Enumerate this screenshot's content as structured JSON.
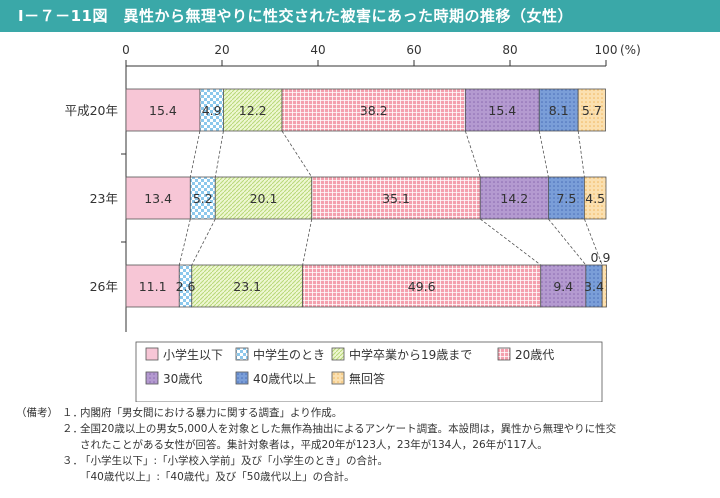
{
  "title": "Ⅰ－７－11図　異性から無理やりに性交された被害にあった時期の推移（女性）",
  "chart_data": {
    "type": "bar",
    "orientation": "horizontal",
    "stacked": true,
    "xlim": [
      0,
      100
    ],
    "x_ticks": [
      "0",
      "20",
      "40",
      "60",
      "80",
      "100"
    ],
    "x_unit": "(%)",
    "categories": [
      "平成20年",
      "23年",
      "26年"
    ],
    "series": [
      {
        "name": "小学生以下",
        "values": [
          15.4,
          13.4,
          11.1
        ],
        "color": "#f7c6d6"
      },
      {
        "name": "中学生のとき",
        "values": [
          4.9,
          5.2,
          2.6
        ],
        "color": "#a8d8f0"
      },
      {
        "name": "中学卒業から19歳まで",
        "values": [
          12.2,
          20.1,
          23.1
        ],
        "color": "#dbeeb0"
      },
      {
        "name": "20歳代",
        "values": [
          38.2,
          35.1,
          49.6
        ],
        "color": "#f08a9a"
      },
      {
        "name": "30歳代",
        "values": [
          15.4,
          14.2,
          9.4
        ],
        "color": "#a88cc4"
      },
      {
        "name": "40歳代以上",
        "values": [
          8.1,
          7.5,
          3.4
        ],
        "color": "#6a8fd0"
      },
      {
        "name": "無回答",
        "values": [
          5.7,
          4.5,
          0.9
        ],
        "color": "#f8d49a"
      }
    ],
    "grid": false,
    "legend_position": "bottom"
  },
  "notes": {
    "label": "（備考）",
    "items": [
      {
        "num": "１．",
        "lines": [
          "内閣府「男女間における暴力に関する調査」より作成。"
        ]
      },
      {
        "num": "２．",
        "lines": [
          "全国20歳以上の男女5,000人を対象とした無作為抽出によるアンケート調査。本設問は，異性から無理やりに性交",
          "されたことがある女性が回答。集計対象者は，平成20年が123人，23年が134人，26年が117人。"
        ]
      },
      {
        "num": "３．",
        "lines": [
          "「小学生以下」:「小学校入学前」及び「小学生のとき」の合計。",
          "「40歳代以上」:「40歳代」及び「50歳代以上」の合計。"
        ]
      }
    ]
  }
}
